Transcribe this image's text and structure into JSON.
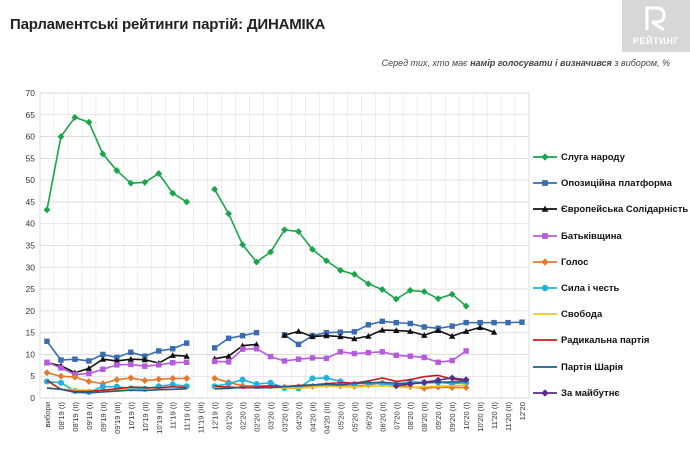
{
  "header": {
    "title": "Парламентські рейтинги партій: ДИНАМІКА",
    "logo_text": "РЕЙТИНГ",
    "subtitle_pre": "Серед тих, хто має ",
    "subtitle_bold": "намір голосувати і визначився",
    "subtitle_post": " з вибором, %"
  },
  "chart_data": {
    "type": "line",
    "x": [
      "вибори",
      "08'19 (I)",
      "08'19 (II)",
      "09'19 (I)",
      "09'19 (II)",
      "09'19 (III)",
      "10'19 (I)",
      "10'19 (II)",
      "10'19 (III)",
      "11'19 (I)",
      "11'19 (II)",
      "11'19 (III)",
      "12'19 (I)",
      "01'20 (I)",
      "02'20 (I)",
      "02'20 (II)",
      "03'20 (I)",
      "03'20 (II)",
      "04'20 (I)",
      "04'20 (II)",
      "04'20 (III)",
      "05'20 (I)",
      "05'20 (II)",
      "06'20 (I)",
      "06'20 (II)",
      "07'20 (I)",
      "08'20 (I)",
      "08'20 (II)",
      "09'20 (I)",
      "09'20 (II)",
      "10'20 (I)",
      "10'20 (II)",
      "11'20 (I)",
      "11'20 (II)",
      "12'20"
    ],
    "ylim": [
      0,
      70
    ],
    "yticks": [
      0,
      5,
      10,
      15,
      20,
      25,
      30,
      35,
      40,
      45,
      50,
      55,
      60,
      65,
      70
    ],
    "grid": true,
    "legend_position": "right",
    "series": [
      {
        "name": "Слуга народу",
        "color": "#1aa54a",
        "marker": "diamond",
        "values": [
          43.2,
          60,
          64.4,
          63.3,
          56,
          52.2,
          49.3,
          49.5,
          51.5,
          47,
          45,
          null,
          47.9,
          42.3,
          35.2,
          31.2,
          33.5,
          38.6,
          38.2,
          34.1,
          31.5,
          29.3,
          28.4,
          26.2,
          24.9,
          22.7,
          24.7,
          24.4,
          22.8,
          23.8,
          21.1,
          null,
          null,
          null,
          null
        ]
      },
      {
        "name": "Опозиційна платформа",
        "color": "#3a6cb0",
        "marker": "square",
        "values": [
          13,
          8.7,
          8.9,
          8.5,
          10,
          9.3,
          10.5,
          9.6,
          10.8,
          11.3,
          12.6,
          null,
          11.5,
          13.7,
          14.3,
          15,
          null,
          14.5,
          12.3,
          14.3,
          15,
          15.1,
          15.2,
          16.8,
          17.6,
          17.3,
          17.1,
          16.3,
          16,
          16.5,
          17.3,
          17.3,
          17.3,
          17.3,
          17.4
        ]
      },
      {
        "name": "Європейська Солідарність",
        "color": "#111111",
        "marker": "triangle",
        "values": [
          8.1,
          7.4,
          5.8,
          6.8,
          8.9,
          8.5,
          8.9,
          8.8,
          8,
          9.8,
          9.6,
          null,
          9,
          9.6,
          12,
          12.3,
          null,
          14.4,
          15.3,
          14.1,
          14.3,
          14.1,
          13.6,
          14.2,
          15.6,
          15.5,
          15.3,
          14.4,
          15.5,
          14.2,
          15.3,
          16.2,
          15.1,
          null,
          null
        ]
      },
      {
        "name": "Батьківщина",
        "color": "#b65bdc",
        "marker": "square",
        "values": [
          8.2,
          6.9,
          5.4,
          5.6,
          6.6,
          7.6,
          7.7,
          7.3,
          7.6,
          8.1,
          8.2,
          null,
          8.4,
          8.3,
          11.2,
          11.3,
          9.5,
          8.5,
          8.9,
          9.2,
          9.1,
          10.6,
          10.2,
          10.4,
          10.6,
          9.8,
          9.6,
          9.3,
          8.2,
          8.6,
          10.8,
          null,
          null,
          null,
          null
        ]
      },
      {
        "name": "Голос",
        "color": "#e8782a",
        "marker": "diamond",
        "values": [
          5.8,
          5,
          4.8,
          3.8,
          3.3,
          4.2,
          4.6,
          4,
          4.3,
          4.5,
          4.5,
          null,
          4.5,
          3.6,
          2.8,
          2.8,
          2.7,
          2.5,
          2.6,
          2.7,
          3,
          2.8,
          2.7,
          3,
          3.5,
          2.8,
          2.6,
          2.2,
          2.5,
          2.4,
          2.4,
          null,
          null,
          null,
          null
        ]
      },
      {
        "name": "Сила і честь",
        "color": "#1fb2e0",
        "marker": "circle",
        "values": [
          3.8,
          3.5,
          1.6,
          1.4,
          2.6,
          2.6,
          2.2,
          2.1,
          2.7,
          3.1,
          2.7,
          null,
          2.7,
          3.3,
          4.2,
          3.2,
          3.5,
          2.3,
          2.2,
          4.5,
          4.6,
          3.8,
          3.2,
          3.5,
          3.2,
          3,
          3.8,
          3.5,
          3.6,
          3.3,
          3.5,
          null,
          null,
          null,
          null
        ]
      },
      {
        "name": "Свобода",
        "color": "#f2c51a",
        "marker": "none",
        "values": [
          2.2,
          2,
          1.9,
          1.8,
          1.7,
          1.9,
          2,
          1.8,
          1.9,
          2,
          2.2,
          null,
          2.3,
          2.5,
          2.4,
          2.3,
          2.4,
          2.3,
          2.2,
          2.5,
          2.7,
          2.6,
          2.5,
          2.7,
          2.8,
          2.5,
          2.4,
          2.6,
          2.7,
          2.8,
          3,
          null,
          null,
          null,
          null
        ]
      },
      {
        "name": "Радикальна партія",
        "color": "#c8191e",
        "marker": "none",
        "values": [
          4,
          2,
          1.5,
          1.5,
          1.8,
          2.1,
          2.5,
          2.4,
          2.3,
          2.6,
          2.4,
          null,
          2.7,
          2.5,
          2.3,
          2.5,
          2.8,
          2.6,
          2.9,
          3,
          3.3,
          3.5,
          3.4,
          3.9,
          4.6,
          3.8,
          4.2,
          4.9,
          5.2,
          4.3,
          4,
          null,
          null,
          null,
          null
        ]
      },
      {
        "name": "Партія Шарія",
        "color": "#1f5f8a",
        "marker": "none",
        "values": [
          2.3,
          2,
          1.3,
          1.2,
          1.4,
          1.6,
          1.8,
          1.7,
          1.9,
          2,
          2.1,
          null,
          2.1,
          2.2,
          2.5,
          2.3,
          2.4,
          2.6,
          2.8,
          3,
          3.1,
          3,
          3.3,
          3.5,
          3.6,
          3.4,
          3.3,
          3.5,
          3.6,
          3.7,
          3.8,
          null,
          null,
          null,
          null
        ]
      },
      {
        "name": "За майбутнє",
        "color": "#5a2d8c",
        "marker": "diamond",
        "values": [
          null,
          null,
          null,
          null,
          null,
          null,
          null,
          null,
          null,
          null,
          null,
          null,
          null,
          null,
          null,
          null,
          null,
          null,
          null,
          null,
          null,
          null,
          null,
          null,
          null,
          2.8,
          3.2,
          3.6,
          4.1,
          4.6,
          4.2,
          null,
          null,
          null,
          null
        ]
      }
    ]
  }
}
